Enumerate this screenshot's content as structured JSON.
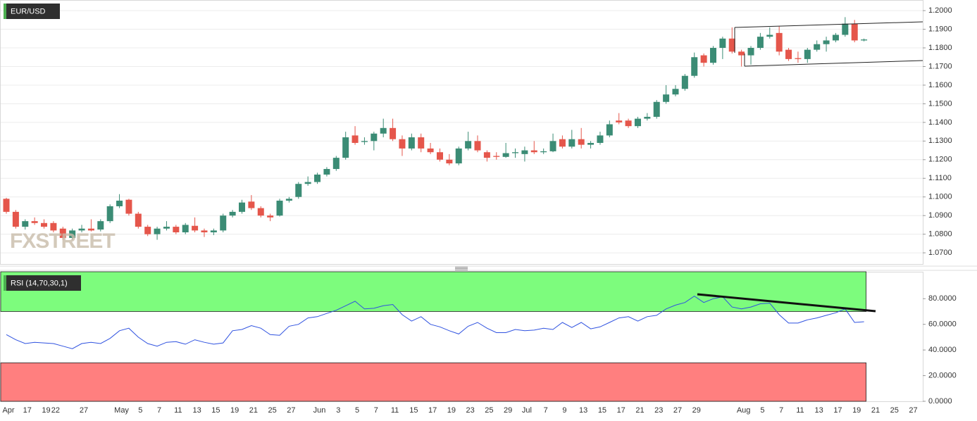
{
  "chart_data": [
    {
      "type": "candlestick",
      "title": "EUR/USD",
      "watermark": "FXSTREET",
      "up_color": "#3b8c75",
      "down_color": "#e5564b",
      "ylim": [
        1.064,
        1.2057
      ],
      "yticks": [
        {
          "value": 1.07,
          "label": "1.0700"
        },
        {
          "value": 1.08,
          "label": "1.0800"
        },
        {
          "value": 1.09,
          "label": "1.0900"
        },
        {
          "value": 1.1,
          "label": "1.1000"
        },
        {
          "value": 1.11,
          "label": "1.1100"
        },
        {
          "value": 1.12,
          "label": "1.1200"
        },
        {
          "value": 1.13,
          "label": "1.1300"
        },
        {
          "value": 1.14,
          "label": "1.1400"
        },
        {
          "value": 1.15,
          "label": "1.1500"
        },
        {
          "value": 1.16,
          "label": "1.1600"
        },
        {
          "value": 1.17,
          "label": "1.1700"
        },
        {
          "value": 1.18,
          "label": "1.1800"
        },
        {
          "value": 1.19,
          "label": "1.1900"
        },
        {
          "value": 1.2,
          "label": "1.2000"
        }
      ],
      "grid": true,
      "open": [
        1.099,
        1.092,
        1.084,
        1.087,
        1.086,
        1.086,
        1.083,
        1.078,
        1.082,
        1.083,
        1.0825,
        1.087,
        1.095,
        1.0985,
        1.091,
        1.084,
        1.08,
        1.083,
        1.084,
        1.081,
        1.0845,
        1.082,
        1.081,
        1.082,
        1.09,
        1.092,
        1.0975,
        1.094,
        1.09,
        1.09,
        1.098,
        1.1,
        1.107,
        1.108,
        1.112,
        1.115,
        1.121,
        1.133,
        1.1295,
        1.13,
        1.134,
        1.137,
        1.131,
        1.126,
        1.132,
        1.126,
        1.124,
        1.12,
        1.118,
        1.126,
        1.13,
        1.124,
        1.122,
        1.1215,
        1.1235,
        1.123,
        1.125,
        1.124,
        1.1245,
        1.131,
        1.127,
        1.131,
        1.128,
        1.129,
        1.133,
        1.141,
        1.141,
        1.138,
        1.142,
        1.143,
        1.151,
        1.155,
        1.158,
        1.165,
        1.176,
        1.172,
        1.18,
        1.185,
        1.178,
        1.176,
        1.18,
        1.186,
        1.188,
        1.179,
        1.1745,
        1.174,
        1.179,
        1.182,
        1.184,
        1.187,
        1.193,
        1.184
      ],
      "high": [
        1.0995,
        1.093,
        1.088,
        1.089,
        1.088,
        1.087,
        1.084,
        1.083,
        1.085,
        1.088,
        1.088,
        1.096,
        1.1015,
        1.099,
        1.092,
        1.085,
        1.084,
        1.087,
        1.085,
        1.086,
        1.089,
        1.083,
        1.083,
        1.091,
        1.093,
        1.0985,
        1.101,
        1.095,
        1.091,
        1.099,
        1.1,
        1.108,
        1.111,
        1.113,
        1.116,
        1.122,
        1.135,
        1.138,
        1.132,
        1.135,
        1.142,
        1.142,
        1.133,
        1.134,
        1.134,
        1.129,
        1.126,
        1.123,
        1.127,
        1.135,
        1.133,
        1.125,
        1.124,
        1.129,
        1.126,
        1.127,
        1.13,
        1.126,
        1.134,
        1.133,
        1.136,
        1.137,
        1.13,
        1.135,
        1.141,
        1.145,
        1.142,
        1.143,
        1.145,
        1.152,
        1.16,
        1.16,
        1.166,
        1.1775,
        1.177,
        1.181,
        1.186,
        1.191,
        1.179,
        1.181,
        1.188,
        1.191,
        1.1915,
        1.18,
        1.178,
        1.18,
        1.184,
        1.186,
        1.188,
        1.1965,
        1.195,
        1.185
      ],
      "low": [
        1.091,
        1.083,
        1.0825,
        1.085,
        1.083,
        1.081,
        1.077,
        1.077,
        1.081,
        1.0815,
        1.0815,
        1.086,
        1.094,
        1.09,
        1.083,
        1.079,
        1.077,
        1.082,
        1.08,
        1.08,
        1.081,
        1.0785,
        1.0795,
        1.081,
        1.089,
        1.091,
        1.093,
        1.089,
        1.087,
        1.0895,
        1.097,
        1.099,
        1.106,
        1.107,
        1.111,
        1.114,
        1.12,
        1.128,
        1.128,
        1.125,
        1.132,
        1.13,
        1.122,
        1.125,
        1.124,
        1.123,
        1.119,
        1.117,
        1.117,
        1.125,
        1.124,
        1.119,
        1.12,
        1.121,
        1.121,
        1.119,
        1.123,
        1.123,
        1.124,
        1.126,
        1.126,
        1.126,
        1.126,
        1.128,
        1.132,
        1.139,
        1.137,
        1.137,
        1.141,
        1.142,
        1.15,
        1.154,
        1.157,
        1.164,
        1.17,
        1.171,
        1.174,
        1.177,
        1.17,
        1.171,
        1.179,
        1.185,
        1.176,
        1.173,
        1.172,
        1.172,
        1.178,
        1.178,
        1.183,
        1.186,
        1.183,
        1.1835
      ],
      "close": [
        1.092,
        1.084,
        1.087,
        1.086,
        1.084,
        1.082,
        1.078,
        1.082,
        1.083,
        1.082,
        1.087,
        1.095,
        1.098,
        1.091,
        1.084,
        1.08,
        1.083,
        1.084,
        1.081,
        1.085,
        1.082,
        1.081,
        1.082,
        1.09,
        1.092,
        1.097,
        1.094,
        1.09,
        1.089,
        1.098,
        1.099,
        1.107,
        1.108,
        1.112,
        1.115,
        1.121,
        1.132,
        1.129,
        1.13,
        1.134,
        1.137,
        1.131,
        1.126,
        1.132,
        1.126,
        1.124,
        1.12,
        1.118,
        1.126,
        1.13,
        1.125,
        1.121,
        1.1215,
        1.1235,
        1.124,
        1.125,
        1.124,
        1.1245,
        1.13,
        1.127,
        1.131,
        1.128,
        1.129,
        1.133,
        1.139,
        1.14,
        1.138,
        1.142,
        1.143,
        1.151,
        1.155,
        1.158,
        1.165,
        1.175,
        1.172,
        1.18,
        1.185,
        1.178,
        1.176,
        1.18,
        1.186,
        1.187,
        1.178,
        1.174,
        1.174,
        1.179,
        1.182,
        1.184,
        1.187,
        1.193,
        1.184,
        1.1845
      ]
    },
    {
      "type": "line",
      "title": "RSI (14,70,30,1)",
      "color": "#2f52e0",
      "overbought": 70,
      "oversold": 30,
      "overbought_color": "#7dfc7d",
      "oversold_color": "#ff7f7f",
      "ylim": [
        0,
        101
      ],
      "yticks": [
        {
          "value": 0,
          "label": "0.0000"
        },
        {
          "value": 20,
          "label": "20.0000"
        },
        {
          "value": 40,
          "label": "40.0000"
        },
        {
          "value": 60,
          "label": "60.0000"
        },
        {
          "value": 80,
          "label": "80.0000"
        }
      ],
      "categories": [
        "Apr",
        null,
        "17",
        null,
        "19",
        "22",
        null,
        null,
        "27",
        null,
        null,
        null,
        "May",
        null,
        "5",
        null,
        "7",
        null,
        "11",
        null,
        "13",
        null,
        "15",
        null,
        "19",
        null,
        "21",
        null,
        "25",
        null,
        "27",
        null,
        null,
        "Jun",
        null,
        "3",
        null,
        "5",
        null,
        "7",
        null,
        "11",
        null,
        "15",
        null,
        "17",
        null,
        "19",
        null,
        "23",
        null,
        "25",
        null,
        "29",
        null,
        "Jul",
        null,
        "7",
        null,
        "9",
        null,
        "13",
        null,
        "15",
        null,
        "17",
        null,
        "21",
        null,
        "23",
        null,
        "27",
        null,
        "29",
        null,
        null,
        null,
        null,
        "Aug",
        null,
        "5",
        null,
        "7",
        null,
        "11",
        null,
        "13",
        null,
        "17",
        null,
        "19",
        null,
        "21",
        null,
        "25",
        null,
        "27"
      ],
      "values": [
        52,
        48,
        45,
        46,
        45.5,
        45,
        43,
        41,
        45,
        46,
        45,
        49,
        55,
        57,
        50,
        45,
        43,
        46,
        46.5,
        44.5,
        48,
        46,
        44.5,
        45.5,
        55,
        56,
        59,
        57,
        52,
        51.5,
        58.5,
        60,
        65,
        66,
        68.5,
        71,
        74.5,
        78,
        72,
        72.5,
        74.5,
        75.5,
        67.5,
        62.5,
        66,
        60,
        58,
        55,
        52.5,
        58.5,
        61.5,
        57,
        53.5,
        53.5,
        56,
        55,
        55.5,
        57,
        56,
        61.5,
        57.5,
        61.5,
        56.5,
        58,
        61.5,
        65,
        66,
        62.5,
        66,
        67,
        72,
        75,
        77,
        82,
        77,
        80,
        81.5,
        73.5,
        72,
        73.5,
        76,
        76.5,
        67.5,
        61,
        61,
        63.5,
        65,
        67,
        69,
        72,
        61.5,
        62,
        null,
        null,
        null,
        null,
        null
      ]
    }
  ]
}
